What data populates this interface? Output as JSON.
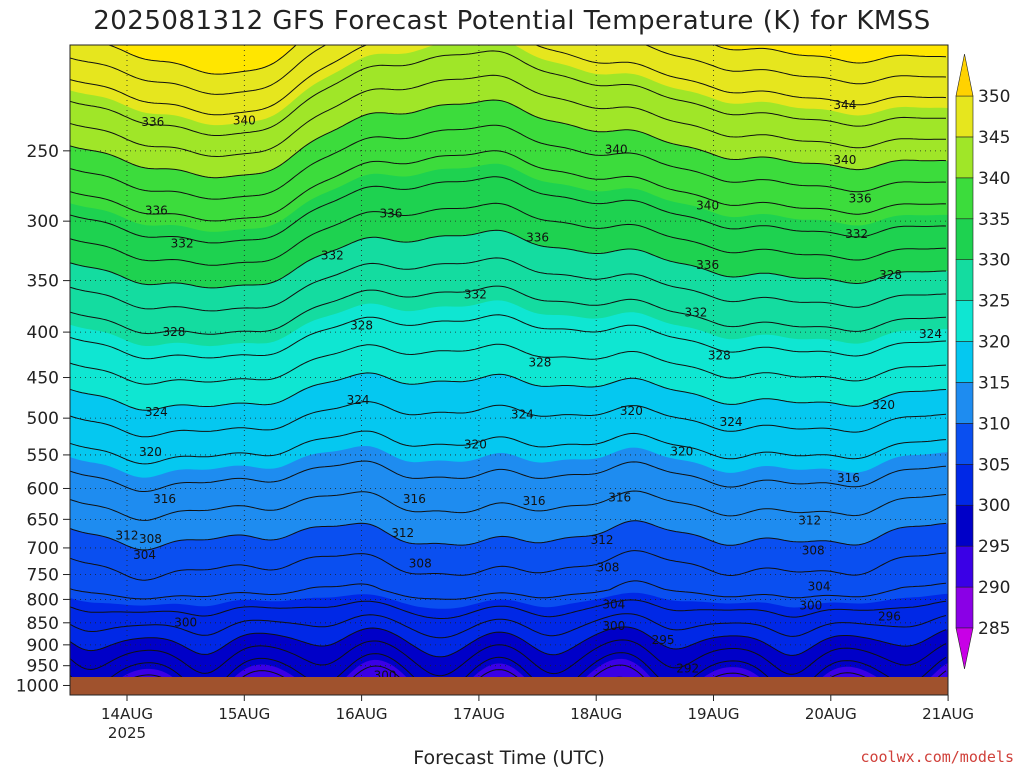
{
  "chart_data": {
    "type": "heatmap",
    "title": "2025081312 GFS Forecast Potential Temperature (K) for KMSS",
    "xlabel": "Forecast Time (UTC)",
    "ylabel": "",
    "credit": "coolwx.com/models",
    "x_ticks": [
      {
        "label": "14AUG",
        "sub": "2025"
      },
      {
        "label": "15AUG",
        "sub": ""
      },
      {
        "label": "16AUG",
        "sub": ""
      },
      {
        "label": "17AUG",
        "sub": ""
      },
      {
        "label": "18AUG",
        "sub": ""
      },
      {
        "label": "19AUG",
        "sub": ""
      },
      {
        "label": "20AUG",
        "sub": ""
      },
      {
        "label": "21AUG",
        "sub": ""
      }
    ],
    "pressure_levels": [
      250,
      300,
      350,
      400,
      450,
      500,
      550,
      600,
      650,
      700,
      750,
      800,
      850,
      900,
      950,
      1000
    ],
    "pressure_range": [
      1025,
      190
    ],
    "grid": true,
    "colorbar": {
      "levels": [
        285,
        290,
        295,
        300,
        305,
        310,
        315,
        320,
        325,
        330,
        335,
        340,
        345,
        350
      ],
      "colors": [
        "#8a00e6",
        "#3a00e6",
        "#0000c8",
        "#0028e6",
        "#0a4ff0",
        "#1e8cf0",
        "#05c8f0",
        "#0fe6d2",
        "#14dca0",
        "#1ed250",
        "#3cdc3c",
        "#a0e628",
        "#e6e61e",
        "#ffe600"
      ],
      "low_color": "#c800e6",
      "high_color": "#ffd200"
    },
    "contour_labels": [
      {
        "t": 0.22,
        "p": 232,
        "v": "336"
      },
      {
        "t": 0.25,
        "p": 292,
        "v": "336"
      },
      {
        "t": 0.47,
        "p": 318,
        "v": "332"
      },
      {
        "t": 0.4,
        "p": 400,
        "v": "328"
      },
      {
        "t": 0.25,
        "p": 492,
        "v": "324"
      },
      {
        "t": 0.2,
        "p": 546,
        "v": "320"
      },
      {
        "t": 0.32,
        "p": 617,
        "v": "316"
      },
      {
        "t": 0.0,
        "p": 678,
        "v": "312"
      },
      {
        "t": 0.2,
        "p": 684,
        "v": "308"
      },
      {
        "t": 0.15,
        "p": 713,
        "v": "304"
      },
      {
        "t": 0.5,
        "p": 849,
        "v": "300"
      },
      {
        "t": 1.0,
        "p": 231,
        "v": "340"
      },
      {
        "t": 2.25,
        "p": 294,
        "v": "336"
      },
      {
        "t": 1.75,
        "p": 328,
        "v": "332"
      },
      {
        "t": 2.0,
        "p": 393,
        "v": "328"
      },
      {
        "t": 1.97,
        "p": 477,
        "v": "324"
      },
      {
        "t": 2.97,
        "p": 535,
        "v": "320"
      },
      {
        "t": 2.45,
        "p": 617,
        "v": "316"
      },
      {
        "t": 2.35,
        "p": 673,
        "v": "312"
      },
      {
        "t": 2.5,
        "p": 729,
        "v": "308"
      },
      {
        "t": 2.2,
        "p": 975,
        "v": "300"
      },
      {
        "t": 3.5,
        "p": 313,
        "v": "336"
      },
      {
        "t": 2.97,
        "p": 363,
        "v": "332"
      },
      {
        "t": 3.52,
        "p": 433,
        "v": "328"
      },
      {
        "t": 3.37,
        "p": 495,
        "v": "324"
      },
      {
        "t": 3.47,
        "p": 620,
        "v": "316"
      },
      {
        "t": 4.05,
        "p": 686,
        "v": "312"
      },
      {
        "t": 4.1,
        "p": 736,
        "v": "308"
      },
      {
        "t": 4.15,
        "p": 811,
        "v": "304"
      },
      {
        "t": 4.15,
        "p": 857,
        "v": "300"
      },
      {
        "t": 4.2,
        "p": 614,
        "v": "316"
      },
      {
        "t": 4.3,
        "p": 491,
        "v": "320"
      },
      {
        "t": 4.17,
        "p": 249,
        "v": "340"
      },
      {
        "t": 4.95,
        "p": 288,
        "v": "340"
      },
      {
        "t": 4.95,
        "p": 336,
        "v": "336"
      },
      {
        "t": 4.85,
        "p": 380,
        "v": "332"
      },
      {
        "t": 5.05,
        "p": 425,
        "v": "328"
      },
      {
        "t": 5.15,
        "p": 505,
        "v": "324"
      },
      {
        "t": 4.73,
        "p": 545,
        "v": "320"
      },
      {
        "t": 4.57,
        "p": 889,
        "v": "295"
      },
      {
        "t": 4.78,
        "p": 957,
        "v": "292"
      },
      {
        "t": 6.12,
        "p": 222,
        "v": "344"
      },
      {
        "t": 6.12,
        "p": 256,
        "v": "340"
      },
      {
        "t": 6.25,
        "p": 283,
        "v": "336"
      },
      {
        "t": 6.22,
        "p": 310,
        "v": "332"
      },
      {
        "t": 6.51,
        "p": 345,
        "v": "328"
      },
      {
        "t": 6.85,
        "p": 402,
        "v": "324"
      },
      {
        "t": 6.45,
        "p": 483,
        "v": "320"
      },
      {
        "t": 6.15,
        "p": 584,
        "v": "316"
      },
      {
        "t": 5.82,
        "p": 652,
        "v": "312"
      },
      {
        "t": 5.85,
        "p": 705,
        "v": "308"
      },
      {
        "t": 5.9,
        "p": 774,
        "v": "304"
      },
      {
        "t": 5.83,
        "p": 813,
        "v": "300"
      },
      {
        "t": 6.5,
        "p": 836,
        "v": "296"
      }
    ]
  }
}
